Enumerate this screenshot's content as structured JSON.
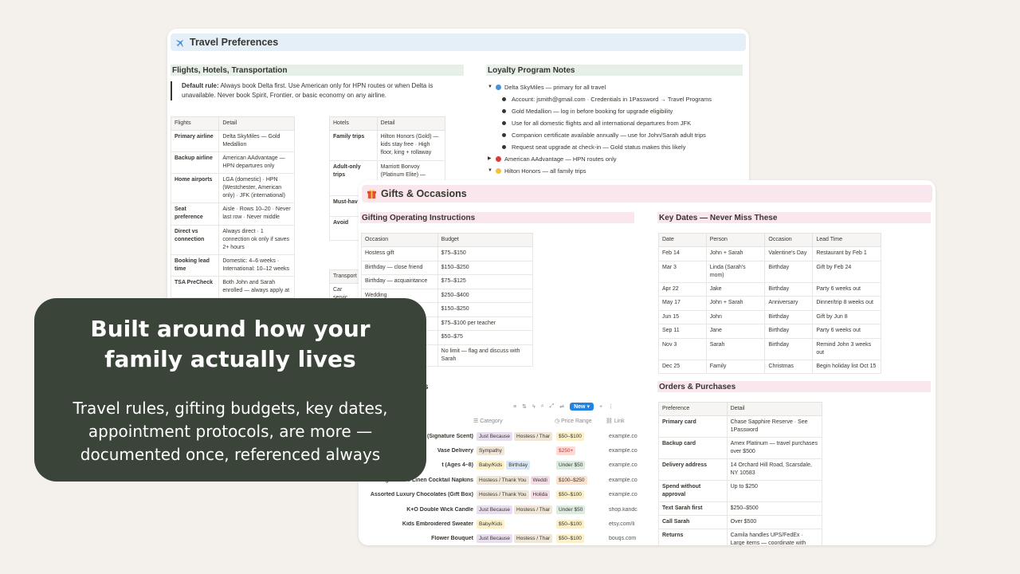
{
  "travel": {
    "title": "Travel Preferences",
    "section_left": "Flights, Hotels, Transportation",
    "section_right": "Loyalty Program Notes",
    "callout_bold": "Default rule:",
    "callout_text": " Always book Delta first. Use American only for HPN routes or when Delta is unavailable. Never book Spirit, Frontier, or basic economy on any airline.",
    "flights_table": {
      "headers": [
        "Flights",
        "Detail"
      ],
      "rows": [
        [
          "Primary airline",
          "Delta SkyMiles — Gold Medallion"
        ],
        [
          "Backup airline",
          "American AAdvantage — HPN departures only"
        ],
        [
          "Home airports",
          "LGA (domestic) · HPN (Westchester, American only) · JFK (international)"
        ],
        [
          "Seat preference",
          "Aisle · Rows 10–20 · Never last row · Never middle"
        ],
        [
          "Direct vs connection",
          "Always direct · 1 connection ok only if saves 2+ hours"
        ],
        [
          "Booking lead time",
          "Domestic: 4–6 weeks · International: 10–12 weeks"
        ],
        [
          "TSA PreCheck",
          "Both John and Sarah enrolled — always apply at"
        ]
      ]
    },
    "hotels_table": {
      "headers": [
        "Hotels",
        "Detail"
      ],
      "rows": [
        [
          "Family trips",
          "Hilton Honors (Gold) — kids stay free · High floor, king + rollaway"
        ],
        [
          "Adult-only trips",
          "Marriott Bonvoy (Platinum Elite) —"
        ],
        [
          "Must-hav",
          ""
        ],
        [
          "Avoid",
          ""
        ]
      ]
    },
    "transport_header": "Transport",
    "transport_row": "Car servic",
    "loyalty": {
      "delta_label": "Delta SkyMiles — primary for all travel",
      "delta_color": "#4a90d9",
      "delta_items": [
        "Account: jsmith@gmail.com · Credentials in 1Password → Travel Programs",
        "Gold Medallion — log in before booking for upgrade eligibility",
        "Use for all domestic flights and all international departures from JFK",
        "Companion certificate available annually — use for John/Sarah adult trips",
        "Request seat upgrade at check-in — Gold status makes this likely"
      ],
      "american_label": "American AAdvantage — HPN routes only",
      "american_color": "#d93c3c",
      "hilton_label": "Hilton Honors — all family trips",
      "hilton_color": "#f2c23a"
    }
  },
  "gifts": {
    "title": "Gifts & Occasions",
    "section_left": "Gifting Operating Instructions",
    "section_right": "Key Dates — Never Miss These",
    "budget_table": {
      "headers": [
        "Occasion",
        "Budget"
      ],
      "rows": [
        [
          "Hostess gift",
          "$75–$150"
        ],
        [
          "Birthday — close friend",
          "$150–$250"
        ],
        [
          "Birthday — acquaintance",
          "$75–$125"
        ],
        [
          "Wedding",
          "$250–$400"
        ],
        [
          "",
          "$150–$250"
        ],
        [
          "",
          "$75–$100 per teacher"
        ],
        [
          "dor",
          "$50–$75"
        ],
        [
          "",
          "No limit — flag and discuss with Sarah"
        ]
      ]
    },
    "dates_table": {
      "headers": [
        "Date",
        "Person",
        "Occasion",
        "Lead Time"
      ],
      "rows": [
        [
          "Feb 14",
          "John + Sarah",
          "Valentine's Day",
          "Restaurant by Feb 1"
        ],
        [
          "Mar 3",
          "Linda (Sarah's mom)",
          "Birthday",
          "Gift by Feb 24"
        ],
        [
          "Apr 22",
          "Jake",
          "Birthday",
          "Party 6 weeks out"
        ],
        [
          "May 17",
          "John + Sarah",
          "Anniversary",
          "Dinner/trip 8 weeks out"
        ],
        [
          "Jun 15",
          "John",
          "Birthday",
          "Gift by Jun 8"
        ],
        [
          "Sep 11",
          "Jane",
          "Birthday",
          "Party 6 weeks out"
        ],
        [
          "Nov 3",
          "Sarah",
          "Birthday",
          "Remind John 3 weeks out"
        ],
        [
          "Dec 25",
          "Family",
          "Christmas",
          "Begin holiday list Oct 15"
        ]
      ]
    },
    "orders_heading": "Orders & Purchases",
    "orders_table": {
      "headers": [
        "Preference",
        "Detail"
      ],
      "rows": [
        [
          "Primary card",
          "Chase Sapphire Reserve · See 1Password"
        ],
        [
          "Backup card",
          "Amex Platinum — travel purchases over $500"
        ],
        [
          "Delivery address",
          "14 Orchard Hill Road, Scarsdale, NY 10583"
        ],
        [
          "Spend without approval",
          "Up to $250"
        ],
        [
          "Text Sarah first",
          "$250–$500"
        ],
        [
          "Call Sarah",
          "Over $500"
        ],
        [
          "Returns",
          "Camila handles UPS/FedEx · Large items — coordinate with Rosa"
        ]
      ]
    },
    "db_heading_fragment": "s",
    "db_new_label": "New",
    "db_columns": [
      "Category",
      "Price Range",
      "Link"
    ],
    "db_rows": [
      {
        "name": "e (Signature Scent)",
        "tags": [
          [
            "Just Because",
            "purple"
          ],
          [
            "Hostess / Thar",
            "tan"
          ]
        ],
        "price": [
          "$50–$100",
          "yellow"
        ],
        "link": "example.co"
      },
      {
        "name": "Vase Delivery",
        "tags": [
          [
            "Sympathy",
            "tan"
          ]
        ],
        "price": [
          "$250+",
          "red"
        ],
        "link": "example.co"
      },
      {
        "name": "t (Ages 4–8)",
        "tags": [
          [
            "Baby/Kids",
            "yellow"
          ],
          [
            "Birthday",
            "blue"
          ]
        ],
        "price": [
          "Under $50",
          "green"
        ],
        "link": "example.co"
      },
      {
        "name": "Monogrammed Linen Cocktail Napkins",
        "tags": [
          [
            "Hostess / Thank You",
            "tan"
          ],
          [
            "Weddi",
            "pink"
          ]
        ],
        "price": [
          "$100–$250",
          "orange"
        ],
        "link": "example.co"
      },
      {
        "name": "Assorted Luxury Chocolates (Gift Box)",
        "tags": [
          [
            "Hostess / Thank You",
            "tan"
          ],
          [
            "Holida",
            "pink"
          ]
        ],
        "price": [
          "$50–$100",
          "yellow"
        ],
        "link": "example.co"
      },
      {
        "name": "K+O Double Wick Candle",
        "tags": [
          [
            "Just Because",
            "purple"
          ],
          [
            "Hostess / Thar",
            "tan"
          ]
        ],
        "price": [
          "Under $50",
          "green"
        ],
        "link": "shop.kandc"
      },
      {
        "name": "Kids Embroidered Sweater",
        "tags": [
          [
            "Baby/Kids",
            "yellow"
          ]
        ],
        "price": [
          "$50–$100",
          "yellow"
        ],
        "link": "etsy.com/li"
      },
      {
        "name": "Flower Bouquet",
        "tags": [
          [
            "Just Because",
            "purple"
          ],
          [
            "Hostess / Thar",
            "tan"
          ]
        ],
        "price": [
          "$50–$100",
          "yellow"
        ],
        "link": "bouqs.com"
      }
    ]
  },
  "promo": {
    "headline": "Built around how your family actually lives",
    "body": "Travel rules, gifting budgets, key dates, appointment protocols, are more — documented once, referenced always",
    "background": "#3a4438"
  }
}
